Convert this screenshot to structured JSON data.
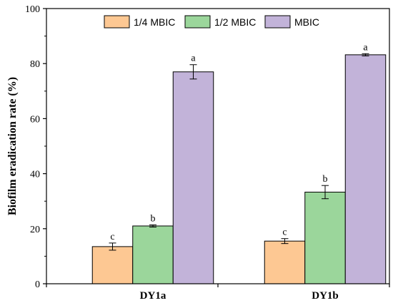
{
  "chart_data": {
    "type": "bar",
    "title": "",
    "xlabel": "",
    "ylabel": "Biofilm eradication rate (%)",
    "ylim": [
      0,
      100
    ],
    "yticks": [
      0,
      20,
      40,
      60,
      80,
      100
    ],
    "categories": [
      "DY1a",
      "DY1b"
    ],
    "legend_position": "top-center",
    "grid": false,
    "series": [
      {
        "name": "1/4 MBIC",
        "color": "#fdc893",
        "values": [
          13.5,
          15.5
        ],
        "errors": [
          1.3,
          0.9
        ],
        "labels": [
          "c",
          "c"
        ]
      },
      {
        "name": "1/2 MBIC",
        "color": "#9bd69b",
        "values": [
          21.0,
          33.3
        ],
        "errors": [
          0.4,
          2.4
        ],
        "labels": [
          "b",
          "b"
        ]
      },
      {
        "name": "MBIC",
        "color": "#c2b3d9",
        "values": [
          77.0,
          83.2
        ],
        "errors": [
          2.6,
          0.4
        ],
        "labels": [
          "a",
          "a"
        ]
      }
    ]
  }
}
